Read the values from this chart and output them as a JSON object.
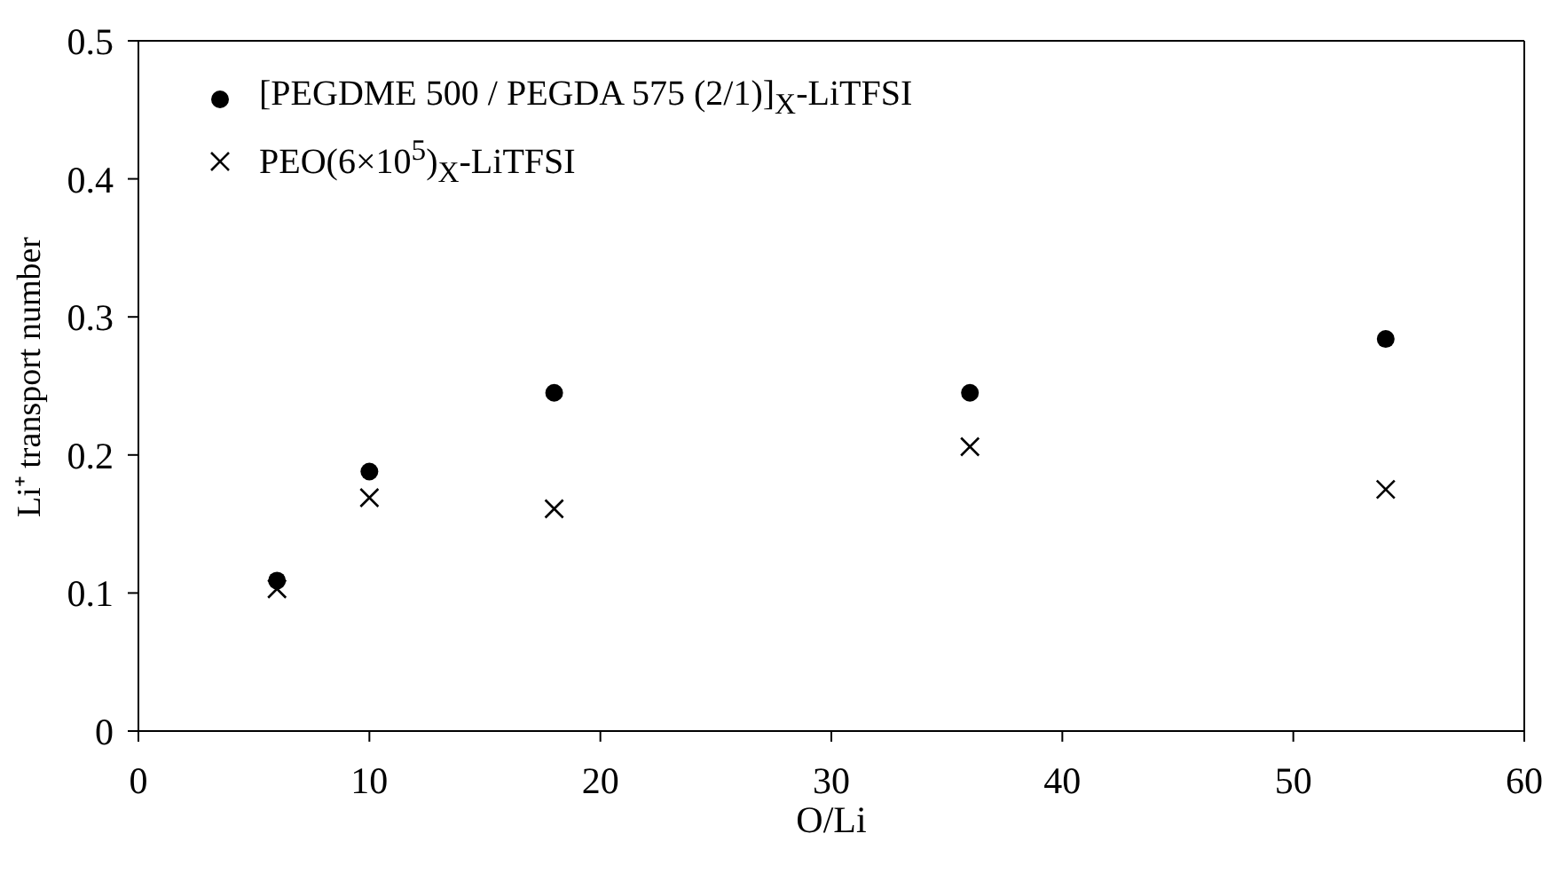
{
  "chart_data": {
    "type": "scatter",
    "xlabel": "O/Li",
    "ylabel": "Li⁺ transport number",
    "xlim": [
      0,
      60
    ],
    "xticks": [
      0,
      10,
      20,
      30,
      40,
      50,
      60
    ],
    "ylim": [
      0,
      0.5
    ],
    "yticks": [
      0,
      0.1,
      0.2,
      0.3,
      0.4,
      0.5
    ],
    "legend": "top left",
    "x": [
      6,
      10,
      18,
      36,
      54
    ],
    "series": [
      {
        "name": "[PEGDME 500 / PEGDA 575 (2/1)]$_{X}$-LiTFSI",
        "color": "#000000",
        "marker": "circle",
        "values": [
          0.109,
          0.188,
          0.245,
          0.245,
          0.284
        ]
      },
      {
        "name": "PEO(6×10$^{5}$)$_{X}$-LiTFSI",
        "color": "#000000",
        "marker": "cross",
        "values": [
          0.103,
          0.169,
          0.161,
          0.206,
          0.175
        ]
      }
    ]
  }
}
